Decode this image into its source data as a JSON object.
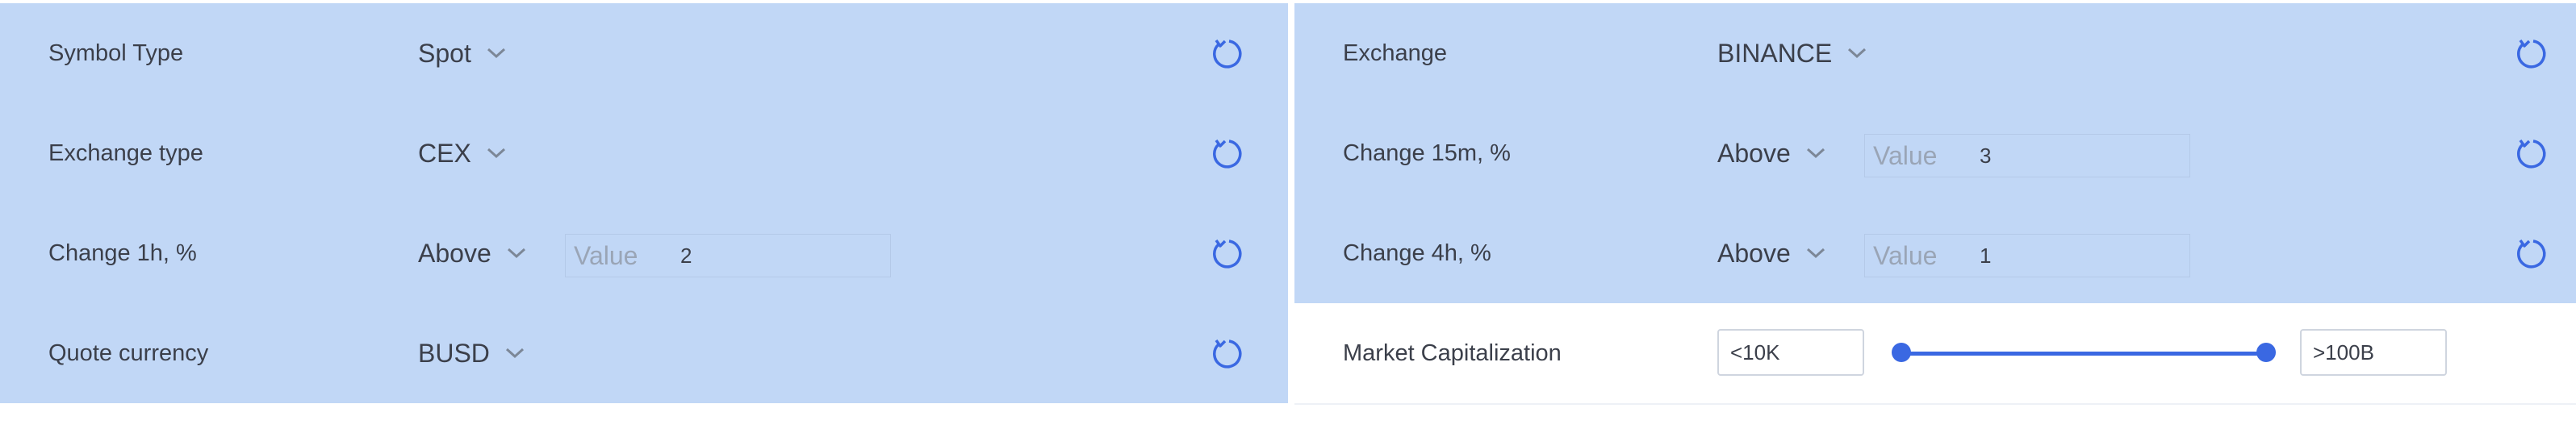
{
  "left": {
    "rows": [
      {
        "label": "Symbol Type",
        "select": "Spot"
      },
      {
        "label": "Exchange type",
        "select": "CEX"
      },
      {
        "label": "Change 1h, %",
        "select": "Above",
        "placeholder": "Value",
        "value": "2"
      },
      {
        "label": "Quote currency",
        "select": "BUSD"
      }
    ]
  },
  "right": {
    "rows": [
      {
        "label": "Exchange",
        "select": "BINANCE"
      },
      {
        "label": "Change 15m, %",
        "select": "Above",
        "placeholder": "Value",
        "value": "3"
      },
      {
        "label": "Change 4h, %",
        "select": "Above",
        "placeholder": "Value",
        "value": "1"
      }
    ],
    "market_cap": {
      "label": "Market Capitalization",
      "min": "<10K",
      "max": ">100B",
      "range_start": 0,
      "range_end": 1
    }
  },
  "colors": {
    "row_bg": "#c1d7f6",
    "accent": "#3a68e2",
    "text": "#3b3f4a",
    "placeholder": "#9aa5b6"
  },
  "icons": {
    "dropdown": "chevron-down-icon",
    "reset": "reset-icon"
  }
}
